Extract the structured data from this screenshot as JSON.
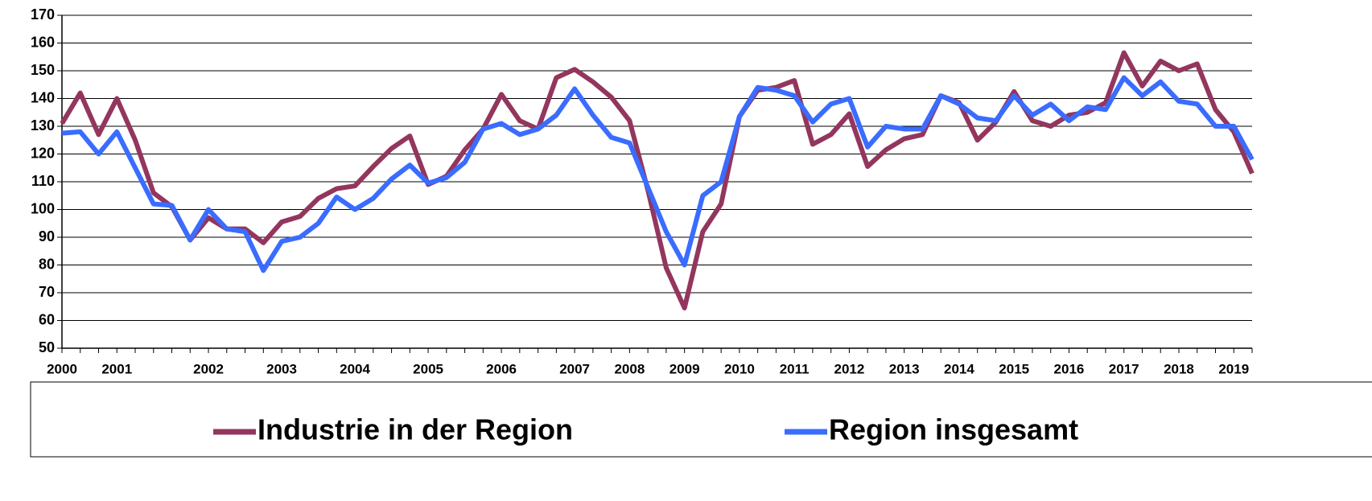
{
  "chart_data": {
    "type": "line",
    "categories": [
      "2000",
      null,
      null,
      "2001",
      null,
      null,
      null,
      null,
      "2002",
      null,
      null,
      null,
      "2003",
      null,
      null,
      null,
      "2004",
      null,
      null,
      null,
      "2005",
      null,
      null,
      null,
      "2006",
      null,
      null,
      null,
      "2007",
      null,
      null,
      "2008",
      null,
      null,
      "2009",
      null,
      null,
      "2010",
      null,
      null,
      "2011",
      null,
      null,
      "2012",
      null,
      null,
      "2013",
      null,
      null,
      "2014",
      null,
      null,
      "2015",
      null,
      null,
      "2016",
      null,
      null,
      "2017",
      null,
      null,
      "2018",
      null,
      null,
      "2019",
      null
    ],
    "series": [
      {
        "name": "Industrie in der Region",
        "color": "#93365e",
        "values": [
          131,
          142,
          127,
          140,
          125,
          106,
          101,
          89,
          97,
          93,
          93,
          88,
          95.5,
          97.5,
          104,
          107.5,
          108.5,
          115.5,
          122,
          126.5,
          109,
          112,
          121.5,
          129,
          141.5,
          132,
          129,
          147.5,
          150.5,
          146,
          140.5,
          132,
          107,
          79,
          64.5,
          92,
          102,
          133.5,
          143,
          144,
          146.5,
          123.5,
          127,
          134.5,
          115.5,
          121.5,
          125.5,
          127,
          141,
          138.5,
          125,
          131.5,
          142.5,
          132,
          130,
          134,
          135,
          138.5,
          156.5,
          144.5,
          153.5,
          150,
          152.5,
          136,
          128,
          113
        ]
      },
      {
        "name": "Region insgesamt",
        "color": "#3a6cff",
        "values": [
          127.5,
          128,
          120,
          128,
          115,
          102,
          101.5,
          89,
          100,
          93,
          92,
          78,
          88.5,
          90,
          95,
          104.5,
          100,
          104,
          111,
          116,
          109.5,
          111.5,
          117,
          129,
          131,
          127,
          129,
          134,
          143.5,
          134,
          126,
          124,
          108,
          92,
          80,
          105,
          110,
          133.5,
          144,
          143,
          141,
          131.5,
          138,
          140,
          122.5,
          130,
          129,
          129,
          141,
          138,
          133,
          132,
          141,
          134,
          138,
          132,
          137,
          136,
          147.5,
          141,
          146,
          139,
          138,
          130,
          130,
          118
        ]
      }
    ],
    "ylim": [
      50,
      170
    ],
    "yticks": [
      50,
      60,
      70,
      80,
      90,
      100,
      110,
      120,
      130,
      140,
      150,
      160,
      170
    ],
    "grid": true,
    "legend": "bottom"
  }
}
